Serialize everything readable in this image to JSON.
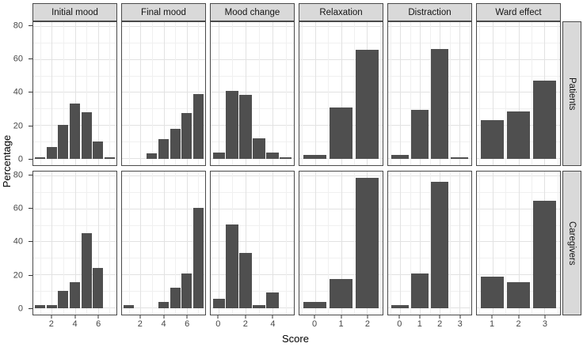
{
  "chart_data": {
    "type": "bar",
    "title": "",
    "xlabel": "Score",
    "ylabel": "Percentage",
    "ylim": [
      0,
      80
    ],
    "y_ticks": [
      0,
      20,
      40,
      60,
      80
    ],
    "y_minor": [
      10,
      30,
      50,
      70
    ],
    "grid": true,
    "legend_position": "none",
    "bar_color": "#4f4f4f",
    "strip_color": "#d9d9d9",
    "facet_rows": [
      "Patients",
      "Caregivers"
    ],
    "facet_cols": [
      {
        "label": "Initial mood",
        "x_domain": [
          0.4,
          7.6
        ],
        "x_ticks": [
          2,
          4,
          6
        ],
        "tick_step": 2
      },
      {
        "label": "Final mood",
        "x_domain": [
          0.4,
          7.6
        ],
        "x_ticks": [
          2,
          4,
          6
        ],
        "tick_step": 2
      },
      {
        "label": "Mood change",
        "x_domain": [
          -0.6,
          5.6
        ],
        "x_ticks": [
          0,
          2,
          4
        ],
        "tick_step": 2
      },
      {
        "label": "Relaxation",
        "x_domain": [
          -0.6,
          2.6
        ],
        "x_ticks": [
          0,
          1,
          2
        ],
        "tick_step": 1
      },
      {
        "label": "Distraction",
        "x_domain": [
          -0.6,
          3.6
        ],
        "x_ticks": [
          0,
          1,
          2,
          3
        ],
        "tick_step": 1
      },
      {
        "label": "Ward effect",
        "x_domain": [
          0.4,
          3.6
        ],
        "x_ticks": [
          1,
          2,
          3
        ],
        "tick_step": 1
      }
    ],
    "panels": [
      {
        "row": "Patients",
        "col": "Initial mood",
        "bars": [
          {
            "x": 1,
            "v": 0.7
          },
          {
            "x": 2,
            "v": 7
          },
          {
            "x": 3,
            "v": 20.5
          },
          {
            "x": 4,
            "v": 33.5
          },
          {
            "x": 5,
            "v": 28
          },
          {
            "x": 6,
            "v": 10.5
          },
          {
            "x": 7,
            "v": 0.7
          }
        ]
      },
      {
        "row": "Patients",
        "col": "Final mood",
        "bars": [
          {
            "x": 3,
            "v": 3
          },
          {
            "x": 4,
            "v": 12
          },
          {
            "x": 5,
            "v": 18
          },
          {
            "x": 6,
            "v": 27.5
          },
          {
            "x": 7,
            "v": 39.5
          }
        ]
      },
      {
        "row": "Patients",
        "col": "Mood change",
        "bars": [
          {
            "x": 0,
            "v": 3.5
          },
          {
            "x": 1,
            "v": 41
          },
          {
            "x": 2,
            "v": 39
          },
          {
            "x": 3,
            "v": 12.5
          },
          {
            "x": 4,
            "v": 3.5
          },
          {
            "x": 5,
            "v": 0.7
          }
        ]
      },
      {
        "row": "Patients",
        "col": "Relaxation",
        "bars": [
          {
            "x": 0,
            "v": 2.5
          },
          {
            "x": 1,
            "v": 31
          },
          {
            "x": 2,
            "v": 66
          }
        ]
      },
      {
        "row": "Patients",
        "col": "Distraction",
        "bars": [
          {
            "x": 0,
            "v": 2.5
          },
          {
            "x": 1,
            "v": 29.5
          },
          {
            "x": 2,
            "v": 66.5
          },
          {
            "x": 3,
            "v": 0.7
          }
        ]
      },
      {
        "row": "Patients",
        "col": "Ward effect",
        "bars": [
          {
            "x": 1,
            "v": 23.5
          },
          {
            "x": 2,
            "v": 28.5
          },
          {
            "x": 3,
            "v": 47.5
          }
        ]
      },
      {
        "row": "Caregivers",
        "col": "Initial mood",
        "bars": [
          {
            "x": 1,
            "v": 2
          },
          {
            "x": 2,
            "v": 2
          },
          {
            "x": 3,
            "v": 10.5
          },
          {
            "x": 4,
            "v": 15.5
          },
          {
            "x": 5,
            "v": 45.5
          },
          {
            "x": 6,
            "v": 24.5
          }
        ]
      },
      {
        "row": "Caregivers",
        "col": "Final mood",
        "bars": [
          {
            "x": 1,
            "v": 2
          },
          {
            "x": 4,
            "v": 3.5
          },
          {
            "x": 5,
            "v": 12.5
          },
          {
            "x": 6,
            "v": 21
          },
          {
            "x": 7,
            "v": 61
          }
        ]
      },
      {
        "row": "Caregivers",
        "col": "Mood change",
        "bars": [
          {
            "x": 0,
            "v": 5.5
          },
          {
            "x": 1,
            "v": 51
          },
          {
            "x": 2,
            "v": 33.5
          },
          {
            "x": 3,
            "v": 2
          },
          {
            "x": 4,
            "v": 9.5
          }
        ]
      },
      {
        "row": "Caregivers",
        "col": "Relaxation",
        "bars": [
          {
            "x": 0,
            "v": 3.5
          },
          {
            "x": 1,
            "v": 17.5
          },
          {
            "x": 2,
            "v": 79
          }
        ]
      },
      {
        "row": "Caregivers",
        "col": "Distraction",
        "bars": [
          {
            "x": 0,
            "v": 2
          },
          {
            "x": 1,
            "v": 21
          },
          {
            "x": 2,
            "v": 77
          }
        ]
      },
      {
        "row": "Caregivers",
        "col": "Ward effect",
        "bars": [
          {
            "x": 1,
            "v": 19
          },
          {
            "x": 2,
            "v": 15.5
          },
          {
            "x": 3,
            "v": 65
          }
        ]
      }
    ],
    "bar_width_units": 0.9,
    "y_scale_expanded": [
      -4,
      83
    ]
  }
}
